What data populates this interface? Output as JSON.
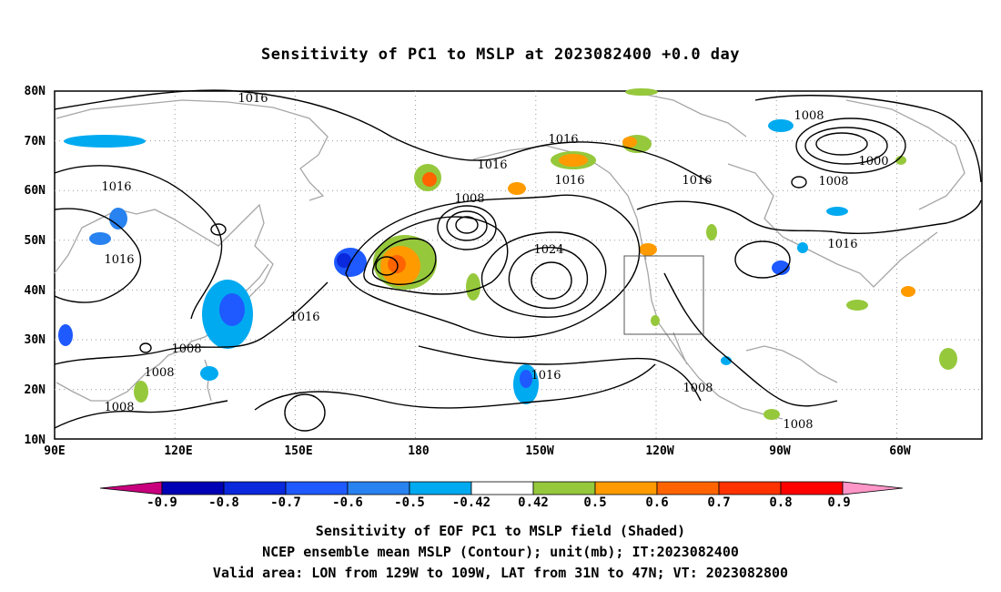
{
  "title": "Sensitivity of PC1 to MSLP at 2023082400 +0.0 day",
  "map": {
    "lat_labels": [
      "80N",
      "70N",
      "60N",
      "50N",
      "40N",
      "30N",
      "20N",
      "10N"
    ],
    "lon_labels": [
      "90E",
      "120E",
      "150E",
      "180",
      "150W",
      "120W",
      "90W",
      "60W"
    ],
    "region_box": {
      "lon_from": "129W",
      "lon_to": "109W",
      "lat_from": "31N",
      "lat_to": "47N"
    },
    "contour_labels": [
      "1016",
      "1016",
      "1016",
      "1016",
      "1016",
      "1016",
      "1016",
      "1016",
      "1016",
      "1016",
      "1008",
      "1008",
      "1008",
      "1008",
      "1008",
      "1008",
      "1008",
      "1008",
      "1024",
      "1000"
    ]
  },
  "colorbar": {
    "labels": [
      "-0.9",
      "-0.8",
      "-0.7",
      "-0.6",
      "-0.5",
      "-0.42",
      "0.42",
      "0.5",
      "0.6",
      "0.7",
      "0.8",
      "0.9"
    ],
    "colors": [
      "#c8007d",
      "#0000b4",
      "#0a28dc",
      "#1e5aff",
      "#2882f0",
      "#00aaf0",
      "#ffffff",
      "#96c83c",
      "#ff9b00",
      "#ff6400",
      "#ff3200",
      "#ff0000",
      "#ff96c8"
    ]
  },
  "caption": {
    "line1": "Sensitivity of EOF PC1 to MSLP field (Shaded)",
    "line2": "NCEP ensemble mean MSLP (Contour); unit(mb); IT:2023082400",
    "line3": "Valid area: LON from 129W to 109W, LAT from 31N to 47N; VT: 2023082800"
  }
}
